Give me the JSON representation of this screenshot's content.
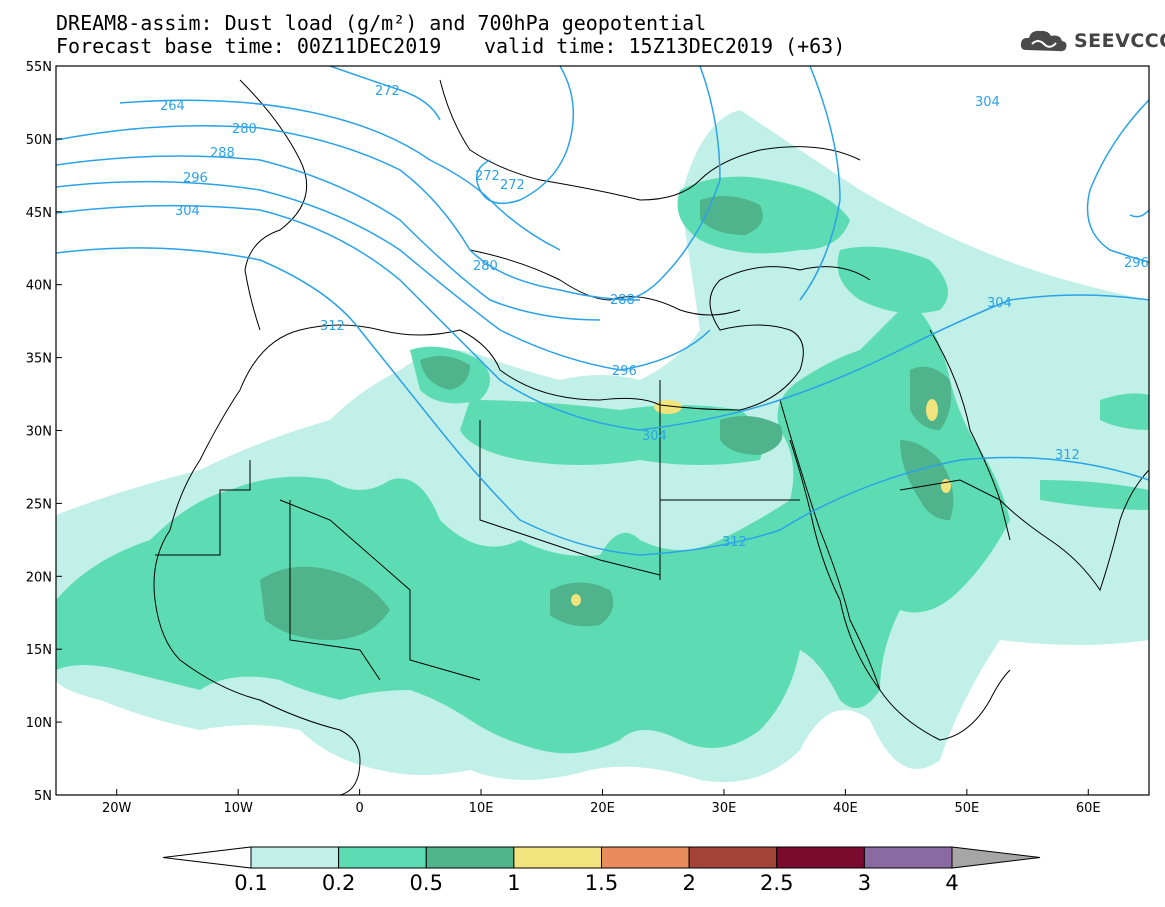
{
  "header": {
    "line1": "DREAM8-assim: Dust load (g/m²) and 700hPa geopotential",
    "line2_left": "Forecast base time: 00Z11DEC2019",
    "line2_right": "valid time: 15Z13DEC2019 (+63)",
    "logo_text": "SEEVCCC",
    "logo_icon": "cloud-logo-icon"
  },
  "map": {
    "lon_range": [
      -25,
      65
    ],
    "lat_range": [
      5,
      55
    ],
    "lon_ticks": [
      {
        "v": -20,
        "label": "20W"
      },
      {
        "v": -10,
        "label": "10W"
      },
      {
        "v": 0,
        "label": "0"
      },
      {
        "v": 10,
        "label": "10E"
      },
      {
        "v": 20,
        "label": "20E"
      },
      {
        "v": 30,
        "label": "30E"
      },
      {
        "v": 40,
        "label": "40E"
      },
      {
        "v": 50,
        "label": "50E"
      },
      {
        "v": 60,
        "label": "60E"
      }
    ],
    "lat_ticks": [
      {
        "v": 55,
        "label": "55N"
      },
      {
        "v": 50,
        "label": "50N"
      },
      {
        "v": 45,
        "label": "45N"
      },
      {
        "v": 40,
        "label": "40N"
      },
      {
        "v": 35,
        "label": "35N"
      },
      {
        "v": 30,
        "label": "30N"
      },
      {
        "v": 25,
        "label": "25N"
      },
      {
        "v": 20,
        "label": "20N"
      },
      {
        "v": 15,
        "label": "15N"
      },
      {
        "v": 10,
        "label": "10N"
      },
      {
        "v": 5,
        "label": "5N"
      }
    ],
    "contour_labels": [
      "264",
      "272",
      "280",
      "288",
      "296",
      "304",
      "312",
      "272",
      "272",
      "280",
      "288",
      "296",
      "304",
      "312",
      "304",
      "296",
      "304",
      "312"
    ]
  },
  "colorbar": {
    "levels": [
      "0.1",
      "0.2",
      "0.5",
      "1",
      "1.5",
      "2",
      "2.5",
      "3",
      "4"
    ],
    "colors": [
      "#ffffff",
      "#c0f0e8",
      "#5ddcb4",
      "#4fb38b",
      "#f2e47c",
      "#e88b5d",
      "#a44436",
      "#7b0b2e",
      "#8a6aa0",
      "#a6a6a6"
    ]
  }
}
